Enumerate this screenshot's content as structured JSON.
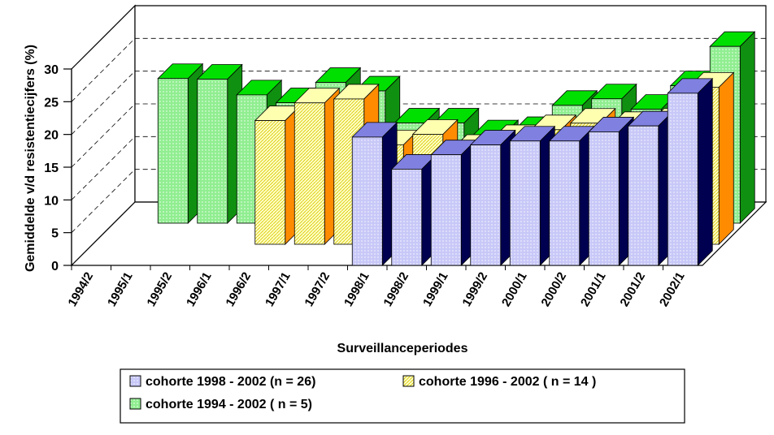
{
  "chart_data": {
    "type": "bar3d",
    "y_label": "Gemiddelde v/d resistentiecijfers (%)",
    "x_label": "Surveillanceperiodes",
    "categories": [
      "1994/2",
      "1995/1",
      "1995/2",
      "1996/1",
      "1996/2",
      "1997/1",
      "1997/2",
      "1998/1",
      "1998/2",
      "1999/1",
      "1999/2",
      "2000/1",
      "2000/2",
      "2001/1",
      "2001/2",
      "2002/1"
    ],
    "series": [
      {
        "name": "cohorte 1998 - 2002 (n = 26)",
        "color": "#c8c8f8",
        "side_color": "#000050",
        "top_color": "#8080e0",
        "values": [
          null,
          null,
          null,
          null,
          null,
          null,
          null,
          19.6,
          14.7,
          16.9,
          18.4,
          19,
          19,
          20.4,
          21.3,
          26.3
        ]
      },
      {
        "name": "cohorte 1996 - 2002 ( n = 14 )",
        "color": "#ffffc8",
        "side_color": "#ff8c00",
        "top_color": "#ffffb0",
        "values": [
          null,
          null,
          null,
          null,
          18.9,
          21.6,
          22.2,
          15.2,
          16.8,
          14.5,
          16,
          17.5,
          18.5,
          18,
          18.5,
          24
        ]
      },
      {
        "name": "cohorte 1994  - 2002 ( n = 5)",
        "color": "#90ee90",
        "side_color": "#109010",
        "top_color": "#00e000",
        "values": [
          null,
          22.1,
          22,
          19.6,
          18.4,
          21.5,
          20.2,
          15.3,
          15.3,
          13.5,
          14,
          18,
          19,
          17.4,
          21,
          27
        ]
      }
    ],
    "ylim": [
      0,
      30
    ],
    "yticks": [
      0,
      5,
      10,
      15,
      20,
      25,
      30
    ],
    "grid": true
  }
}
